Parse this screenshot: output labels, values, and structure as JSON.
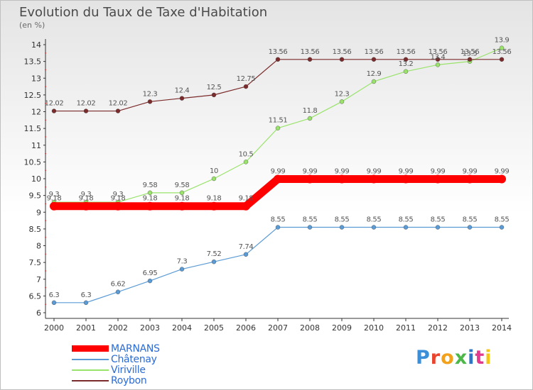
{
  "title": "Evolution du Taux de Taxe d'Habitation",
  "subtitle": "(en %)",
  "logo_text": "Proxiti",
  "chart_data": {
    "type": "line",
    "title": "Evolution du Taux de Taxe d'Habitation",
    "ylabel": "(en %)",
    "xlabel": "",
    "ylim": [
      6,
      14
    ],
    "yticks": [
      "6",
      "6.5",
      "7",
      "7.5",
      "8",
      "8.5",
      "9",
      "9.5",
      "10",
      "10.5",
      "11",
      "11.5",
      "12",
      "12.5",
      "13",
      "13.5",
      "14"
    ],
    "x": [
      "2000",
      "2001",
      "2002",
      "2003",
      "2004",
      "2005",
      "2006",
      "2007",
      "2008",
      "2009",
      "2010",
      "2011",
      "2012",
      "2013",
      "2014"
    ],
    "grid": false,
    "legend": "bottom-left",
    "series": [
      {
        "name": "MARNANS",
        "color": "#ff0000",
        "values": [
          9.18,
          9.18,
          9.18,
          9.18,
          9.18,
          9.18,
          9.18,
          9.99,
          9.99,
          9.99,
          9.99,
          9.99,
          9.99,
          9.99,
          9.99
        ]
      },
      {
        "name": "Châtenay",
        "color": "#5b9bd5",
        "values": [
          6.3,
          6.3,
          6.62,
          6.95,
          7.3,
          7.52,
          7.74,
          8.55,
          8.55,
          8.55,
          8.55,
          8.55,
          8.55,
          8.55,
          8.55
        ]
      },
      {
        "name": "Viriville",
        "color": "#99e36b",
        "values": [
          9.3,
          9.3,
          9.3,
          9.58,
          9.58,
          10,
          10.5,
          11.51,
          11.8,
          12.3,
          12.9,
          13.2,
          13.4,
          13.5,
          13.9
        ]
      },
      {
        "name": "Roybon",
        "color": "#7b2b2b",
        "values": [
          12.02,
          12.02,
          12.02,
          12.3,
          12.4,
          12.5,
          12.75,
          13.56,
          13.56,
          13.56,
          13.56,
          13.56,
          13.56,
          13.56,
          13.56
        ]
      }
    ]
  }
}
